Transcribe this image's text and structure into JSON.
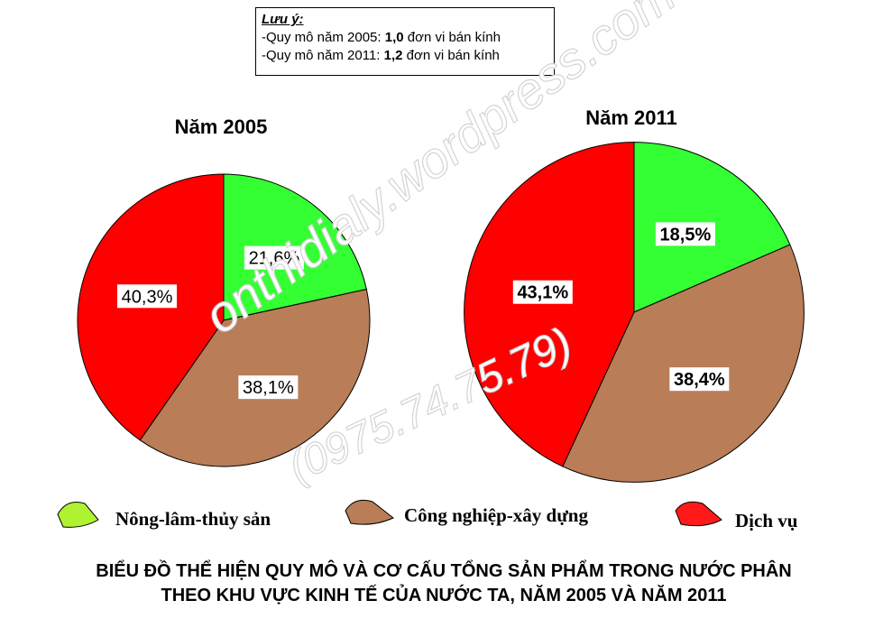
{
  "note": {
    "title": "Lưu ý:",
    "line1_prefix": "-Quy mô năm 2005: ",
    "line1_value": "1,0",
    "line1_suffix": " đơn vi bán kính",
    "line2_prefix": "-Quy mô năm 2011: ",
    "line2_value": "1,2",
    "line2_suffix": " đơn vi bán kính"
  },
  "watermark": {
    "line1": "onthidialy.wordpress.com",
    "line2": "(0975.74.75.79)"
  },
  "legend": [
    {
      "label": "Nông-lâm-thủy sản",
      "color": "#aef232"
    },
    {
      "label": "Công nghiệp-xây dựng",
      "color": "#b97d58"
    },
    {
      "label": "Dịch vụ",
      "color": "#ff1a1a"
    }
  ],
  "title": {
    "line1": "BIỂU ĐỒ THỂ HIỆN QUY MÔ VÀ CƠ CẤU TỔNG SẢN PHẨM TRONG NƯỚC PHÂN",
    "line2": "THEO KHU VỰC KINH TẾ CỦA NƯỚC TA, NĂM 2005 VÀ NĂM 2011"
  },
  "chart_data": [
    {
      "type": "pie",
      "title": "Năm 2005",
      "radius_units": 1.0,
      "slices": [
        {
          "label": "21,6%",
          "value": 21.6,
          "color": "#33ff33"
        },
        {
          "label": "38,1%",
          "value": 38.1,
          "color": "#b97d58"
        },
        {
          "label": "40,3%",
          "value": 40.3,
          "color": "#ff0000"
        }
      ]
    },
    {
      "type": "pie",
      "title": "Năm 2011",
      "radius_units": 1.2,
      "slices": [
        {
          "label": "18,5%",
          "value": 18.5,
          "color": "#33ff33"
        },
        {
          "label": "38,4%",
          "value": 38.4,
          "color": "#b97d58"
        },
        {
          "label": "43,1%",
          "value": 43.1,
          "color": "#ff0000"
        }
      ]
    }
  ]
}
